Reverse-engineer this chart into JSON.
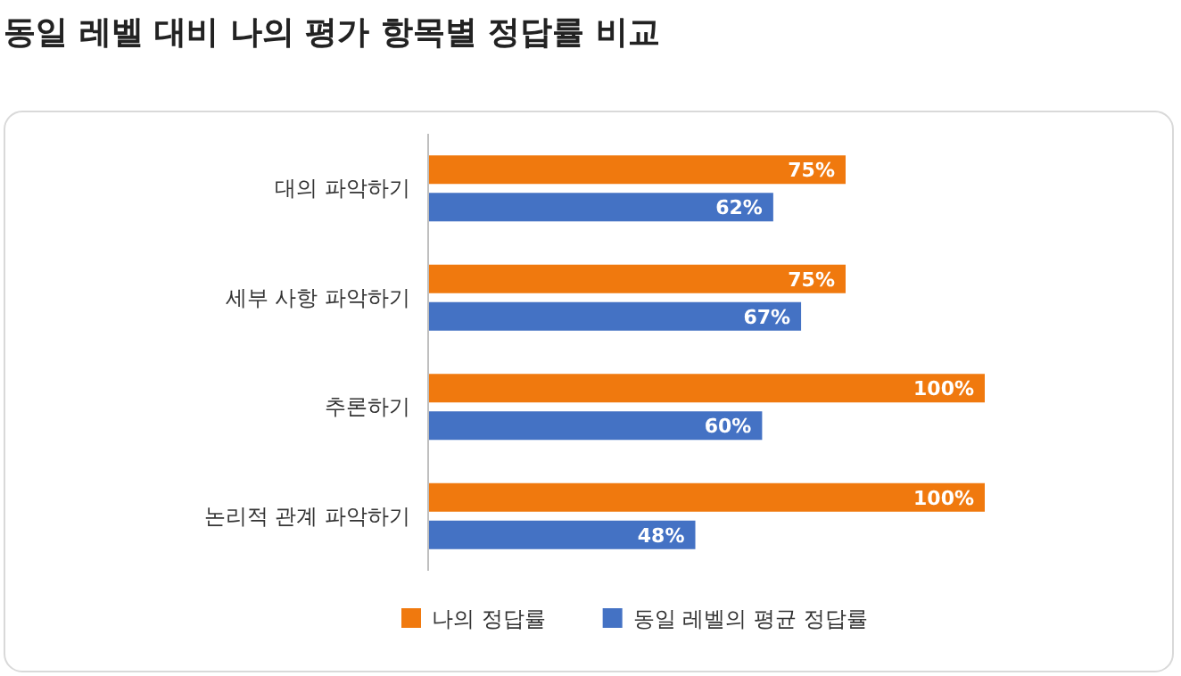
{
  "chart_data": {
    "type": "bar",
    "orientation": "horizontal",
    "title": "동일 레벨 대비 나의 평가 항목별 정답률 비교",
    "categories": [
      "대의 파악하기",
      "세부 사항 파악하기",
      "추론하기",
      "논리적 관계 파악하기"
    ],
    "series": [
      {
        "name": "나의 정답률",
        "color": "#f0790e",
        "values": [
          75,
          75,
          100,
          100
        ],
        "value_labels": [
          "75%",
          "75%",
          "100%",
          "100%"
        ]
      },
      {
        "name": "동일 레벨의 평균 정답률",
        "color": "#4472c4",
        "values": [
          62,
          67,
          60,
          48
        ],
        "value_labels": [
          "62%",
          "67%",
          "60%",
          "48%"
        ]
      }
    ],
    "legend": "bottom"
  }
}
